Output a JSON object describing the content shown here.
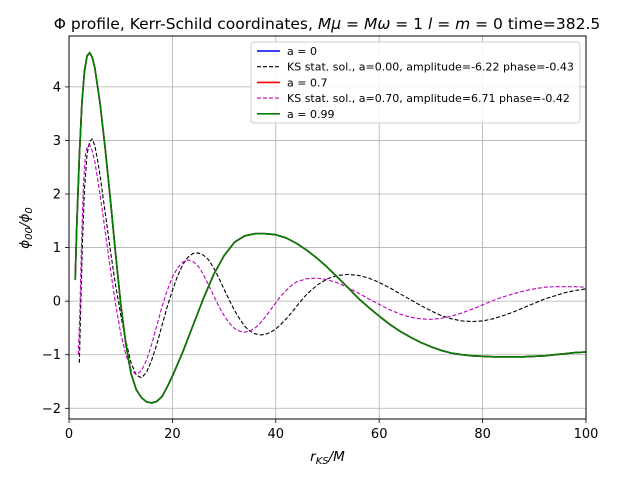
{
  "chart_data": {
    "type": "line",
    "title": "Φ profile, Kerr-Schild coordinates, Mμ = Mω = 1 l = m = 0 time=382.5",
    "title_parts": {
      "prefix": "Φ profile, Kerr-Schild coordinates, ",
      "math1": "Mμ",
      "eq1": " = ",
      "math2": "Mω",
      "eq2": " = 1 ",
      "math3": "l",
      "eq3": " = ",
      "math4": "m",
      "eq4": " = 0 time=382.5"
    },
    "xlabel": "r_KS/M",
    "xlabel_parts": {
      "main": "r",
      "sub": "KS",
      "tail": "/M"
    },
    "ylabel": "ϕ00/ϕ0",
    "ylabel_parts": {
      "a": "ϕ",
      "a_sub": "00",
      "b": "/ϕ",
      "b_sub": "0"
    },
    "xlim": [
      0,
      100
    ],
    "ylim": [
      -2.2,
      4.95
    ],
    "xticks": [
      0,
      20,
      40,
      60,
      80,
      100
    ],
    "yticks": [
      -2,
      -1,
      0,
      1,
      2,
      3,
      4
    ],
    "grid": true,
    "legend_position": "upper right",
    "series": [
      {
        "name": "a = 0",
        "color": "#0000ff",
        "style": "solid",
        "x": [
          1.2,
          1.5,
          2,
          2.5,
          3,
          3.5,
          4,
          4.5,
          5,
          6,
          7,
          8,
          9,
          10,
          11,
          12,
          13,
          14,
          15,
          16,
          17,
          18,
          19,
          20,
          22,
          24,
          26,
          28,
          30,
          32,
          34,
          36,
          38,
          40,
          42,
          44,
          46,
          48,
          50,
          52,
          54,
          56,
          58,
          60,
          62,
          64,
          66,
          68,
          70,
          72,
          74,
          76,
          78,
          80,
          82,
          84,
          86,
          88,
          90,
          92,
          94,
          96,
          98,
          100
        ],
        "y": [
          0.4,
          1.4,
          2.7,
          3.7,
          4.3,
          4.58,
          4.64,
          4.55,
          4.35,
          3.7,
          2.85,
          1.9,
          0.9,
          -0.05,
          -0.8,
          -1.35,
          -1.65,
          -1.8,
          -1.88,
          -1.9,
          -1.87,
          -1.78,
          -1.6,
          -1.4,
          -0.95,
          -0.45,
          0.05,
          0.5,
          0.85,
          1.1,
          1.22,
          1.26,
          1.26,
          1.24,
          1.18,
          1.08,
          0.95,
          0.8,
          0.63,
          0.44,
          0.25,
          0.05,
          -0.12,
          -0.28,
          -0.43,
          -0.56,
          -0.67,
          -0.77,
          -0.85,
          -0.92,
          -0.97,
          -1.0,
          -1.02,
          -1.03,
          -1.04,
          -1.04,
          -1.04,
          -1.04,
          -1.03,
          -1.02,
          -1.0,
          -0.98,
          -0.96,
          -0.95
        ]
      },
      {
        "name": "KS stat. sol., a=0.00, amplitude=-6.22 phase=-0.43",
        "color": "#000000",
        "style": "dashed",
        "x": [
          2.0,
          2.3,
          2.6,
          3.0,
          3.5,
          4.0,
          4.5,
          5.0,
          5.5,
          6.0,
          7.0,
          8.0,
          9.0,
          10.0,
          11.0,
          12.0,
          13.0,
          14.0,
          15.0,
          16.0,
          17.0,
          18.0,
          19.0,
          20.0,
          21.0,
          22.0,
          23.0,
          24.0,
          25.0,
          26.0,
          27.0,
          28.0,
          29.0,
          30.0,
          31.0,
          32.0,
          33.0,
          34.0,
          35.0,
          36.0,
          37.0,
          38.0,
          39.0,
          40.0,
          41.0,
          42.0,
          43.0,
          44.0,
          45.0,
          46.0,
          48.0,
          50.0,
          52.0,
          54.0,
          56.0,
          58.0,
          60.0,
          62.0,
          64.0,
          66.0,
          68.0,
          70.0,
          72.0,
          74.0,
          76.0,
          78.0,
          80.0,
          82.0,
          84.0,
          86.0,
          88.0,
          90.0,
          92.0,
          94.0,
          96.0,
          98.0,
          100.0
        ],
        "y": [
          -1.15,
          0.0,
          1.1,
          2.1,
          2.75,
          2.98,
          3.03,
          2.9,
          2.65,
          2.35,
          1.65,
          0.95,
          0.3,
          -0.25,
          -0.75,
          -1.15,
          -1.38,
          -1.43,
          -1.33,
          -1.1,
          -0.8,
          -0.45,
          -0.1,
          0.2,
          0.47,
          0.68,
          0.82,
          0.89,
          0.9,
          0.86,
          0.77,
          0.62,
          0.43,
          0.22,
          0.02,
          -0.17,
          -0.33,
          -0.47,
          -0.56,
          -0.61,
          -0.63,
          -0.62,
          -0.58,
          -0.52,
          -0.43,
          -0.33,
          -0.22,
          -0.1,
          0.02,
          0.13,
          0.3,
          0.42,
          0.48,
          0.5,
          0.48,
          0.43,
          0.35,
          0.25,
          0.14,
          0.03,
          -0.08,
          -0.18,
          -0.27,
          -0.33,
          -0.37,
          -0.38,
          -0.37,
          -0.33,
          -0.27,
          -0.2,
          -0.12,
          -0.04,
          0.04,
          0.1,
          0.16,
          0.2,
          0.23
        ]
      },
      {
        "name": "a = 0.7",
        "color": "#ff0000",
        "style": "solid",
        "x": [
          1.2,
          1.5,
          2,
          2.5,
          3,
          3.5,
          4,
          4.5,
          5,
          6,
          7,
          8,
          9,
          10,
          11,
          12,
          13,
          14,
          15,
          16,
          17,
          18,
          19,
          20,
          22,
          24,
          26,
          28,
          30,
          32,
          34,
          36,
          38,
          40,
          42,
          44,
          46,
          48,
          50,
          52,
          54,
          56,
          58,
          60,
          62,
          64,
          66,
          68,
          70,
          72,
          74,
          76,
          78,
          80,
          82,
          84,
          86,
          88,
          90,
          92,
          94,
          96,
          98,
          100
        ],
        "y": [
          0.4,
          1.4,
          2.7,
          3.7,
          4.3,
          4.58,
          4.64,
          4.55,
          4.35,
          3.7,
          2.85,
          1.9,
          0.9,
          -0.05,
          -0.8,
          -1.35,
          -1.65,
          -1.8,
          -1.88,
          -1.9,
          -1.87,
          -1.78,
          -1.6,
          -1.4,
          -0.95,
          -0.45,
          0.05,
          0.5,
          0.85,
          1.1,
          1.22,
          1.26,
          1.26,
          1.24,
          1.18,
          1.08,
          0.95,
          0.8,
          0.63,
          0.44,
          0.25,
          0.05,
          -0.12,
          -0.28,
          -0.43,
          -0.56,
          -0.67,
          -0.77,
          -0.85,
          -0.92,
          -0.97,
          -1.0,
          -1.02,
          -1.03,
          -1.04,
          -1.04,
          -1.04,
          -1.04,
          -1.03,
          -1.02,
          -1.0,
          -0.98,
          -0.96,
          -0.95
        ]
      },
      {
        "name": "KS stat. sol., a=0.70, amplitude=6.71 phase=-0.42",
        "color": "#bf00bf",
        "style": "dashed",
        "x": [
          1.8,
          2.1,
          2.4,
          2.8,
          3.2,
          3.6,
          4.0,
          4.5,
          5.0,
          5.5,
          6.0,
          7.0,
          8.0,
          9.0,
          10.0,
          11.0,
          12.0,
          13.0,
          14.0,
          15.0,
          16.0,
          17.0,
          18.0,
          19.0,
          20.0,
          21.0,
          22.0,
          23.0,
          24.0,
          25.0,
          26.0,
          27.0,
          28.0,
          29.0,
          30.0,
          31.0,
          32.0,
          33.0,
          34.0,
          35.0,
          36.0,
          37.0,
          38.0,
          39.0,
          40.0,
          41.0,
          42.0,
          43.0,
          44.0,
          46.0,
          48.0,
          50.0,
          52.0,
          54.0,
          56.0,
          58.0,
          60.0,
          62.0,
          64.0,
          66.0,
          68.0,
          70.0,
          72.0,
          74.0,
          76.0,
          78.0,
          80.0,
          82.0,
          84.0,
          86.0,
          88.0,
          90.0,
          92.0,
          94.0,
          96.0,
          98.0,
          100.0
        ],
        "y": [
          -1.0,
          -0.2,
          1.0,
          2.2,
          2.75,
          2.9,
          2.92,
          2.8,
          2.6,
          2.3,
          2.0,
          1.3,
          0.6,
          -0.05,
          -0.6,
          -1.0,
          -1.28,
          -1.37,
          -1.3,
          -1.1,
          -0.8,
          -0.45,
          -0.1,
          0.2,
          0.45,
          0.62,
          0.73,
          0.77,
          0.74,
          0.65,
          0.5,
          0.3,
          0.1,
          -0.1,
          -0.27,
          -0.41,
          -0.51,
          -0.56,
          -0.58,
          -0.56,
          -0.5,
          -0.41,
          -0.29,
          -0.16,
          -0.03,
          0.1,
          0.2,
          0.29,
          0.36,
          0.42,
          0.43,
          0.4,
          0.34,
          0.25,
          0.15,
          0.04,
          -0.06,
          -0.16,
          -0.24,
          -0.3,
          -0.33,
          -0.34,
          -0.32,
          -0.28,
          -0.22,
          -0.15,
          -0.07,
          0.01,
          0.08,
          0.14,
          0.19,
          0.23,
          0.26,
          0.27,
          0.27,
          0.27,
          0.26
        ]
      },
      {
        "name": "a = 0.99",
        "color": "#008000",
        "style": "solid",
        "x": [
          1.2,
          1.5,
          2,
          2.5,
          3,
          3.5,
          4,
          4.5,
          5,
          6,
          7,
          8,
          9,
          10,
          11,
          12,
          13,
          14,
          15,
          16,
          17,
          18,
          19,
          20,
          22,
          24,
          26,
          28,
          30,
          32,
          34,
          36,
          38,
          40,
          42,
          44,
          46,
          48,
          50,
          52,
          54,
          56,
          58,
          60,
          62,
          64,
          66,
          68,
          70,
          72,
          74,
          76,
          78,
          80,
          82,
          84,
          86,
          88,
          90,
          92,
          94,
          96,
          98,
          100
        ],
        "y": [
          0.4,
          1.4,
          2.7,
          3.7,
          4.3,
          4.58,
          4.64,
          4.55,
          4.35,
          3.7,
          2.85,
          1.9,
          0.9,
          -0.05,
          -0.8,
          -1.35,
          -1.65,
          -1.8,
          -1.88,
          -1.9,
          -1.87,
          -1.78,
          -1.6,
          -1.4,
          -0.95,
          -0.45,
          0.05,
          0.5,
          0.85,
          1.1,
          1.22,
          1.26,
          1.26,
          1.24,
          1.18,
          1.08,
          0.95,
          0.8,
          0.63,
          0.44,
          0.25,
          0.05,
          -0.12,
          -0.28,
          -0.43,
          -0.56,
          -0.67,
          -0.77,
          -0.85,
          -0.92,
          -0.97,
          -1.0,
          -1.02,
          -1.03,
          -1.04,
          -1.04,
          -1.04,
          -1.04,
          -1.03,
          -1.02,
          -1.0,
          -0.98,
          -0.96,
          -0.95
        ]
      }
    ]
  }
}
